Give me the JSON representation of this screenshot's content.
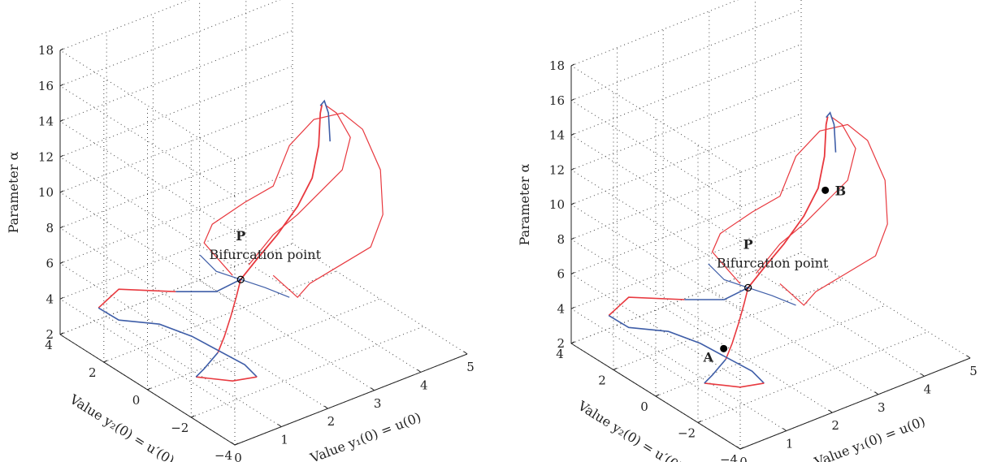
{
  "chart_data": [
    {
      "type": "line",
      "dimension": "3d",
      "xlabel": "Value y₁(0) = u(0)",
      "ylabel": "Value y₂(0) = u′(0)",
      "zlabel": "Parameter α",
      "xlim": [
        0,
        5
      ],
      "ylim": [
        -4,
        4
      ],
      "zlim": [
        2,
        18
      ],
      "xticks": [
        "0",
        "1",
        "2",
        "3",
        "4",
        "5"
      ],
      "yticks": [
        "−4",
        "−2",
        "0",
        "2",
        "4"
      ],
      "zticks": [
        "2",
        "4",
        "6",
        "8",
        "10",
        "12",
        "14",
        "16",
        "18"
      ],
      "grid": true,
      "colors": {
        "red": "#e8393f",
        "blue": "#3f5ea8",
        "axis": "#222222",
        "marker": "#000000"
      },
      "annotations": [
        {
          "text": "P",
          "bold": true
        },
        {
          "text": "Bifurcation point"
        }
      ],
      "bifurcation_point": {
        "x": 2.1,
        "y": 0.2,
        "z": 5.9
      }
    },
    {
      "type": "line",
      "dimension": "3d",
      "xlabel": "Value y₁(0) = u(0)",
      "ylabel": "Value y₂(0) = u′(0)",
      "zlabel": "Parameter α",
      "xlim": [
        0,
        5
      ],
      "ylim": [
        -4,
        4
      ],
      "zlim": [
        2,
        18
      ],
      "xticks": [
        "0",
        "1",
        "2",
        "3",
        "4",
        "5"
      ],
      "yticks": [
        "−4",
        "−2",
        "0",
        "2",
        "4"
      ],
      "zticks": [
        "2",
        "4",
        "6",
        "8",
        "10",
        "12",
        "14",
        "16",
        "18"
      ],
      "grid": true,
      "colors": {
        "red": "#e8393f",
        "blue": "#3f5ea8",
        "axis": "#222222",
        "marker": "#000000"
      },
      "annotations": [
        {
          "text": "P",
          "bold": true
        },
        {
          "text": "Bifurcation point"
        },
        {
          "text": "A",
          "bold": true
        },
        {
          "text": "B",
          "bold": true
        }
      ],
      "bifurcation_point": {
        "x": 2.1,
        "y": 0.2,
        "z": 5.9
      },
      "marked_points": [
        {
          "label": "A",
          "x": 1.0,
          "y": -1.0,
          "z": 3.1
        },
        {
          "label": "B",
          "x": 3.1,
          "y": 1.5,
          "z": 12.4
        }
      ]
    }
  ]
}
